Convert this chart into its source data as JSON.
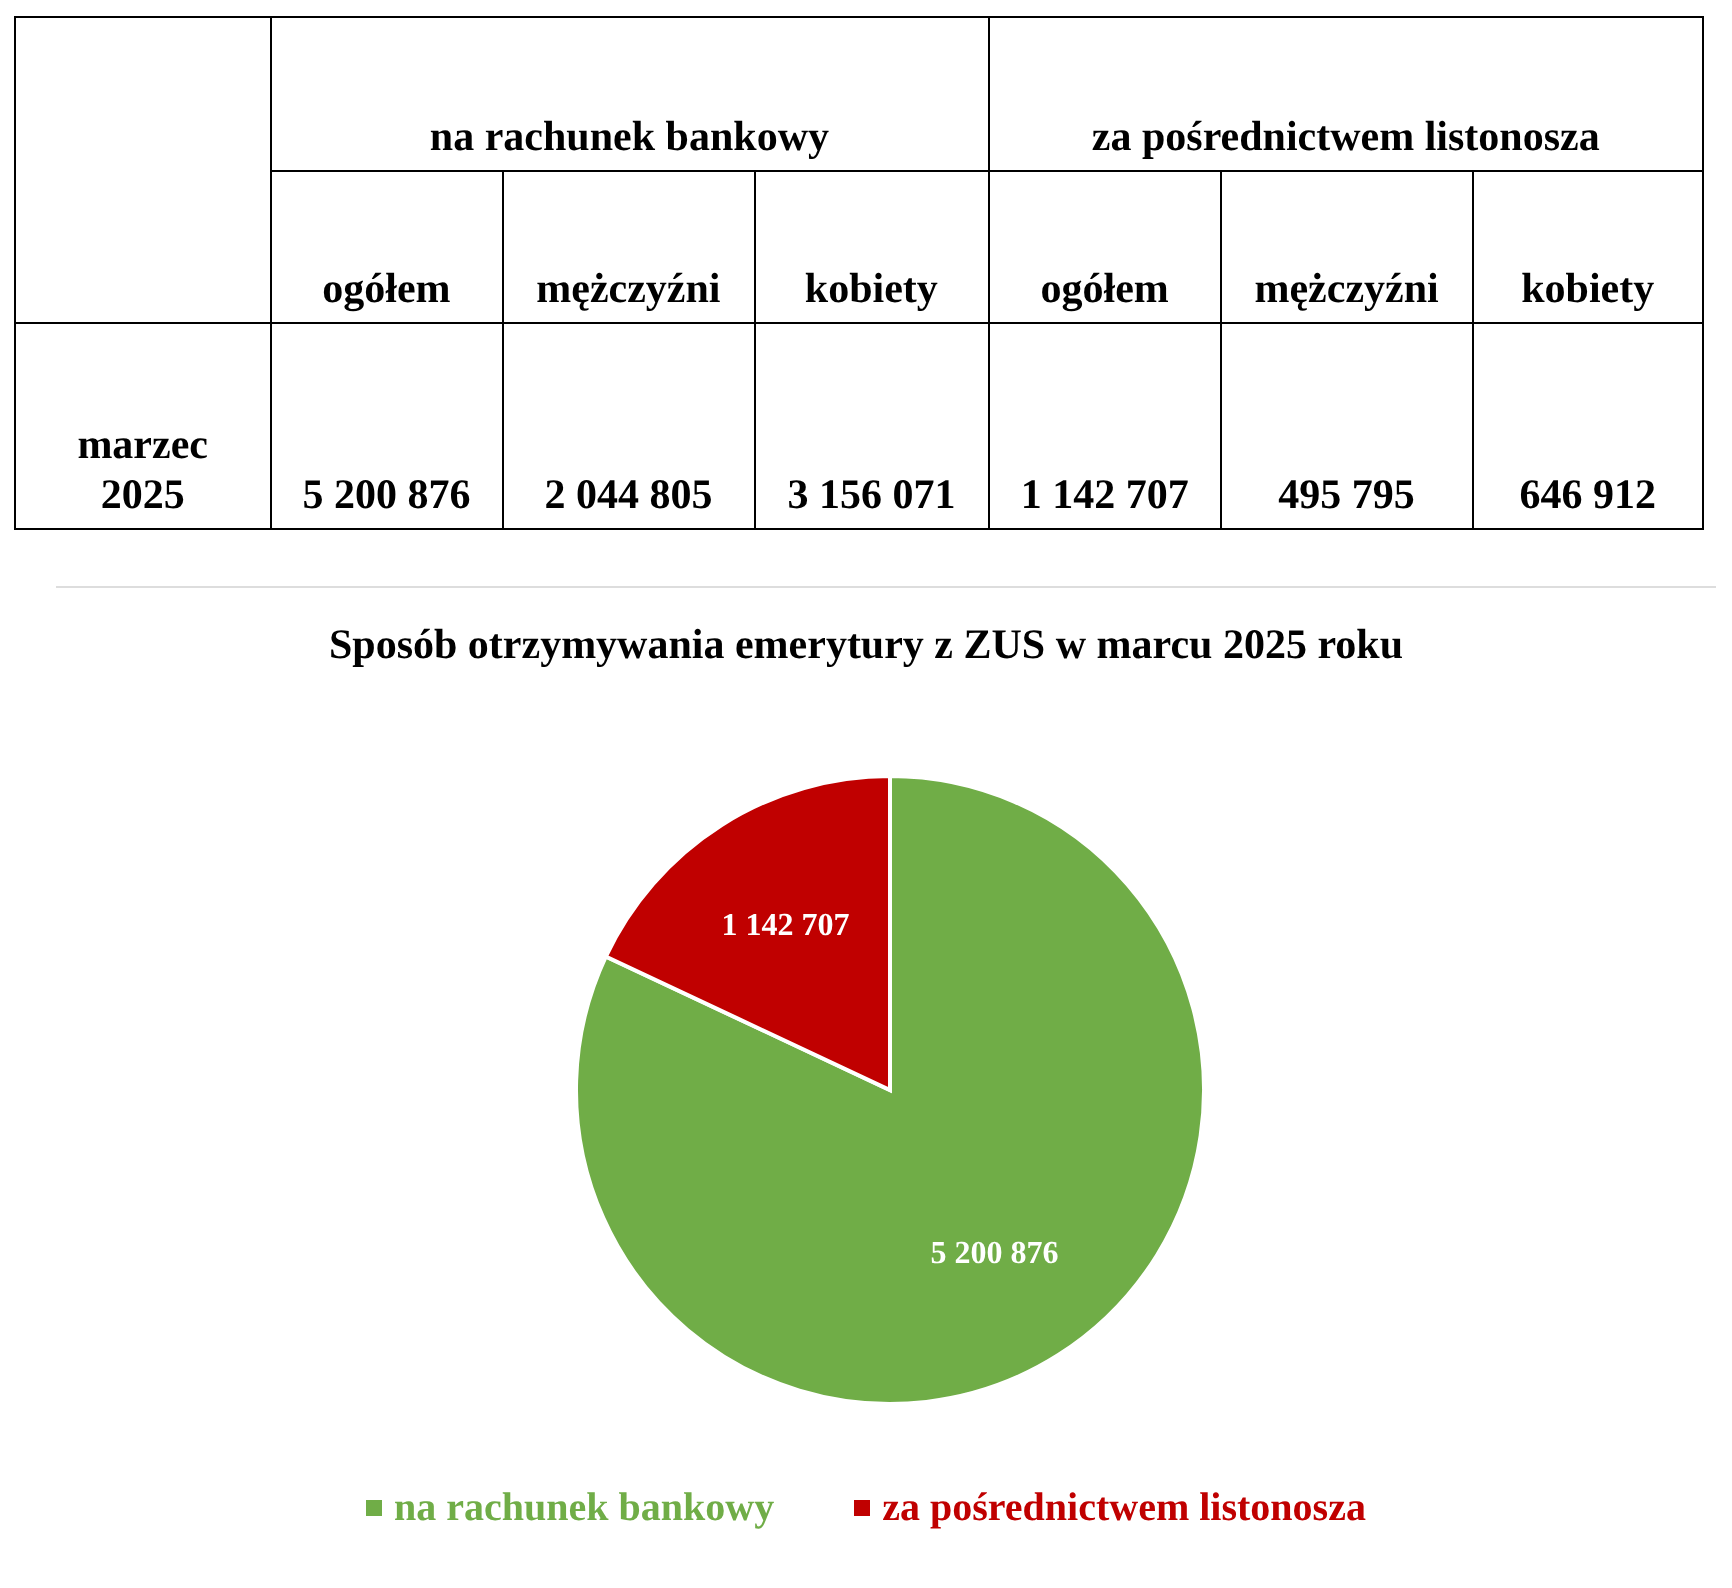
{
  "chart_data": [
    {
      "type": "other",
      "annotations": [
        "na rachunek bankowy",
        "za pośrednictwem listonosza"
      ],
      "categories": [
        "ogółem",
        "mężczyźni",
        "kobiety",
        "ogółem",
        "mężczyźni",
        "kobiety"
      ],
      "y_categories": [
        "marzec 2025"
      ],
      "cell_labels": [
        [
          "5 200 876",
          "2 044 805",
          "3 156 071",
          "1 142 707",
          "495 795",
          "646 912"
        ]
      ]
    },
    {
      "type": "pie",
      "title": "Sposób otrzymywania emerytury z ZUS w marcu 2025 roku",
      "categories": [
        "na rachunek bankowy",
        "za pośrednictwem listonosza"
      ],
      "values": [
        5200876,
        1142707
      ],
      "colors": [
        "#70ad47",
        "#c00000"
      ],
      "value_labels": [
        "5 200 876",
        "1 142 707"
      ],
      "legend": "bottom"
    }
  ]
}
